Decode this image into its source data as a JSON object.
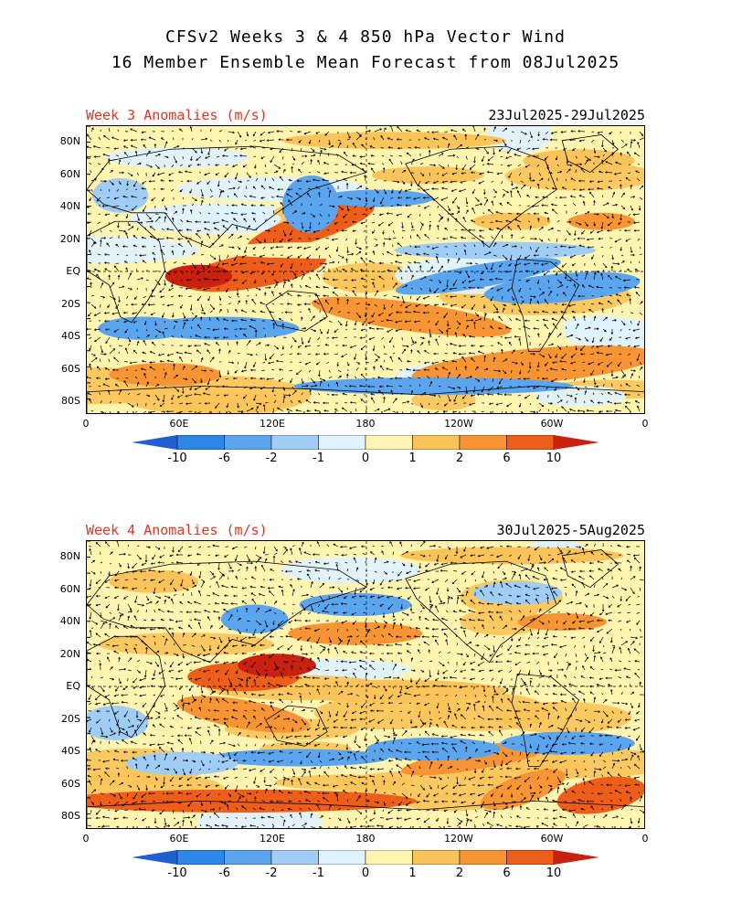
{
  "title": {
    "line1": "CFSv2 Weeks 3 & 4 850 hPa Vector Wind",
    "line2": "16 Member Ensemble Mean Forecast from 08Jul2025"
  },
  "panels": [
    {
      "label": "Week 3 Anomalies (m/s)",
      "dates": "23Jul2025-29Jul2025"
    },
    {
      "label": "Week 4 Anomalies (m/s)",
      "dates": "30Jul2025-5Aug2025"
    }
  ],
  "lat_labels": [
    "80N",
    "60N",
    "40N",
    "20N",
    "EQ",
    "20S",
    "40S",
    "60S",
    "80S"
  ],
  "lon_labels": [
    "0",
    "60E",
    "120E",
    "180",
    "120W",
    "60W",
    "0"
  ],
  "colorbar": {
    "labels": [
      "-10",
      "-6",
      "-2",
      "-1",
      "0",
      "1",
      "2",
      "6",
      "10"
    ],
    "colors": [
      "#1f5fd0",
      "#2e86e8",
      "#5aa5ee",
      "#a0cdf6",
      "#dff3ff",
      "#fff4b0",
      "#fbc45a",
      "#f79434",
      "#ec5e1a",
      "#c9200f"
    ]
  }
}
